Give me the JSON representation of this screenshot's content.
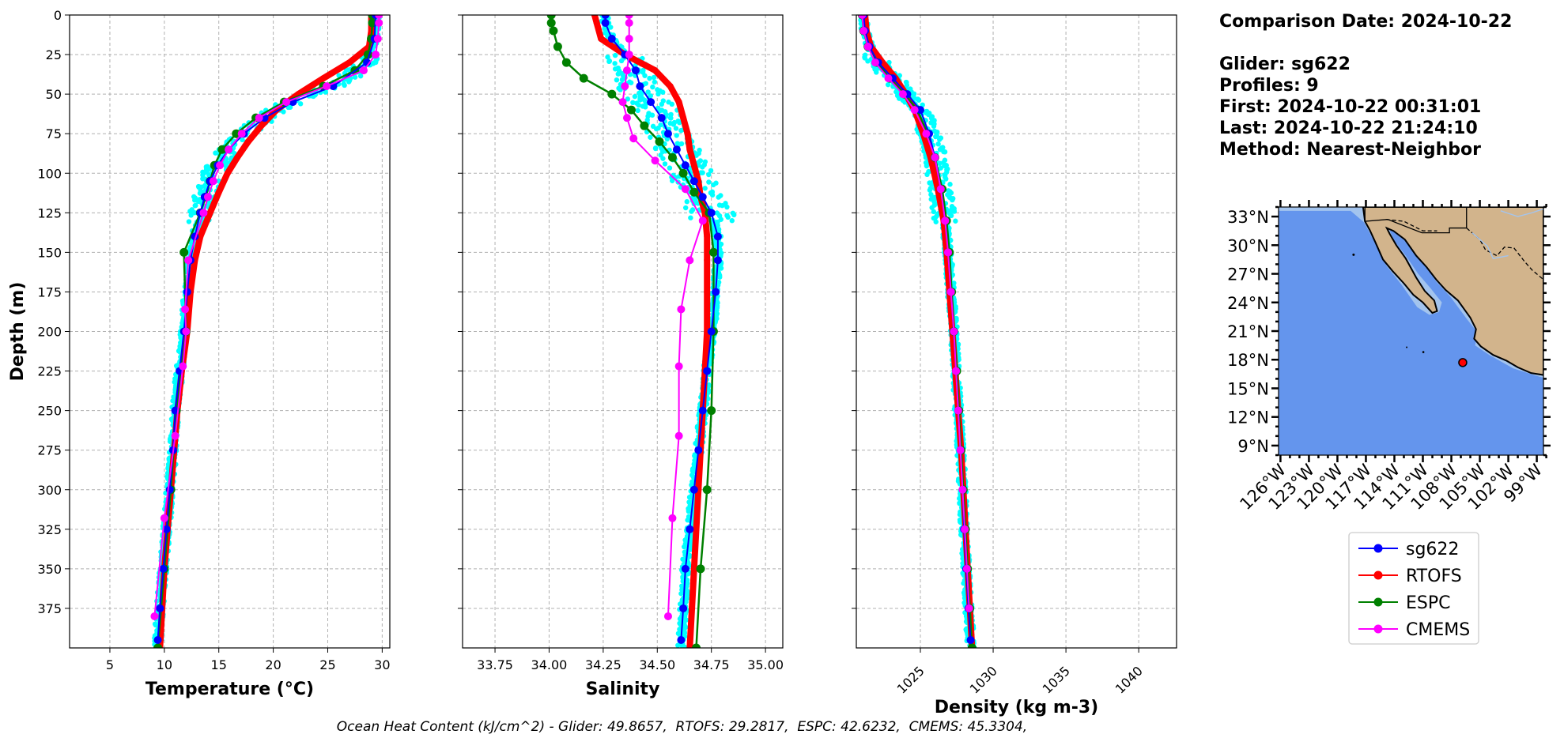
{
  "colors": {
    "glider": "#0000ff",
    "glider_profiles": "#00ffff",
    "rtofs": "#ff0000",
    "espc": "#008000",
    "cmems": "#ff00ff",
    "ocean": "#6495ed",
    "shelf": "#a3c4ee",
    "land": "#d2b48c",
    "grid": "#b0b0b0"
  },
  "info": {
    "date": "Comparison Date: 2024-10-22",
    "glider": "Glider: sg622",
    "profiles": "Profiles: 9",
    "first": "First: 2024-10-22 00:31:01",
    "last": "Last: 2024-10-22 21:24:10",
    "method": "Method: Nearest-Neighbor"
  },
  "footer": "Ocean Heat Content (kJ/cm^2) - Glider: 49.8657,  RTOFS: 29.2817,  ESPC: 42.6232,  CMEMS: 45.3304,",
  "legend": [
    "sg622",
    "RTOFS",
    "ESPC",
    "CMEMS"
  ],
  "chart_data": [
    {
      "type": "line",
      "xlabel": "Temperature (°C)",
      "ylabel": "Depth (m)",
      "xlim": [
        1.3,
        30.7
      ],
      "ylim": [
        400,
        0
      ],
      "xticks": [
        "5",
        "10",
        "15",
        "20",
        "25",
        "30"
      ],
      "xtick_values": [
        5,
        10,
        15,
        20,
        25,
        30
      ],
      "yticks": [
        "0",
        "25",
        "50",
        "75",
        "100",
        "125",
        "150",
        "175",
        "200",
        "225",
        "250",
        "275",
        "300",
        "325",
        "350",
        "375"
      ],
      "ytick_values": [
        0,
        25,
        50,
        75,
        100,
        125,
        150,
        175,
        200,
        225,
        250,
        275,
        300,
        325,
        350,
        375
      ],
      "grid": true,
      "series": [
        {
          "name": "sg622",
          "depth": [
            0,
            15,
            30,
            45,
            55,
            65,
            75,
            85,
            95,
            105,
            115,
            125,
            140,
            155,
            175,
            200,
            225,
            250,
            275,
            300,
            325,
            350,
            375,
            395
          ],
          "values": [
            29.4,
            29.3,
            28.6,
            25.5,
            21.8,
            19.2,
            17.3,
            15.9,
            14.9,
            14.2,
            13.7,
            13.3,
            12.8,
            12.4,
            12.1,
            11.8,
            11.4,
            11.0,
            10.8,
            10.5,
            10.2,
            9.9,
            9.6,
            9.4
          ]
        },
        {
          "name": "RTOFS",
          "depth": [
            0,
            10,
            20,
            30,
            40,
            50,
            60,
            70,
            80,
            90,
            100,
            112,
            125,
            140,
            155,
            175,
            200,
            225,
            250,
            275,
            300,
            325,
            350,
            375,
            400
          ],
          "values": [
            29.0,
            29.0,
            28.8,
            27.0,
            24.6,
            22.3,
            20.3,
            18.9,
            17.7,
            16.7,
            15.8,
            15.0,
            14.2,
            13.3,
            12.8,
            12.4,
            12.1,
            11.6,
            11.2,
            10.9,
            10.6,
            10.3,
            10.0,
            9.8,
            9.6
          ]
        },
        {
          "name": "ESPC",
          "depth": [
            0,
            5,
            15,
            25,
            35,
            45,
            55,
            65,
            75,
            85,
            95,
            105,
            115,
            125,
            150,
            200,
            250,
            300,
            350,
            400
          ],
          "values": [
            29.1,
            29.1,
            29.0,
            28.7,
            27.5,
            24.6,
            21.0,
            18.4,
            16.6,
            15.3,
            14.6,
            14.2,
            13.8,
            13.3,
            11.8,
            12.0,
            11.1,
            10.6,
            10.0,
            9.4
          ]
        },
        {
          "name": "CMEMS",
          "depth": [
            0,
            5,
            15,
            25,
            35,
            45,
            55,
            65,
            75,
            85,
            95,
            105,
            115,
            125,
            155,
            186,
            200,
            222,
            266,
            318,
            380
          ],
          "values": [
            29.7,
            29.7,
            29.6,
            29.4,
            28.3,
            24.9,
            21.2,
            18.7,
            17.1,
            15.9,
            15.1,
            14.5,
            14.0,
            13.6,
            12.2,
            11.9,
            12.0,
            11.7,
            11.0,
            10.0,
            9.1
          ]
        }
      ]
    },
    {
      "type": "line",
      "xlabel": "Salinity",
      "ylim": [
        400,
        0
      ],
      "xlim": [
        33.6,
        35.08
      ],
      "xticks": [
        "33.75",
        "34.00",
        "34.25",
        "34.50",
        "34.75",
        "35.00"
      ],
      "xtick_values": [
        33.75,
        34.0,
        34.25,
        34.5,
        34.75,
        35.0
      ],
      "grid": true,
      "series": [
        {
          "name": "sg622",
          "depth": [
            0,
            5,
            15,
            25,
            35,
            45,
            55,
            65,
            75,
            85,
            95,
            105,
            115,
            125,
            140,
            155,
            175,
            200,
            225,
            250,
            275,
            300,
            325,
            350,
            375,
            395
          ],
          "values": [
            34.26,
            34.26,
            34.29,
            34.35,
            34.4,
            34.42,
            34.47,
            34.52,
            34.55,
            34.59,
            34.63,
            34.67,
            34.71,
            34.75,
            34.78,
            34.78,
            34.77,
            34.75,
            34.73,
            34.71,
            34.69,
            34.67,
            34.65,
            34.63,
            34.62,
            34.61
          ]
        },
        {
          "name": "RTOFS",
          "depth": [
            0,
            5,
            15,
            25,
            35,
            45,
            55,
            65,
            75,
            85,
            95,
            105,
            115,
            125,
            140,
            155,
            175,
            200,
            225,
            250,
            275,
            300,
            325,
            350,
            375,
            400
          ],
          "values": [
            34.21,
            34.22,
            34.24,
            34.35,
            34.49,
            34.56,
            34.6,
            34.62,
            34.64,
            34.65,
            34.67,
            34.69,
            34.7,
            34.72,
            34.73,
            34.73,
            34.73,
            34.73,
            34.72,
            34.71,
            34.7,
            34.69,
            34.68,
            34.67,
            34.66,
            34.65
          ]
        },
        {
          "name": "ESPC",
          "depth": [
            0,
            5,
            10,
            20,
            30,
            40,
            50,
            60,
            70,
            80,
            90,
            100,
            112,
            125,
            150,
            200,
            250,
            300,
            350,
            400
          ],
          "values": [
            34.01,
            34.01,
            34.02,
            34.04,
            34.08,
            34.16,
            34.29,
            34.38,
            34.44,
            34.51,
            34.57,
            34.62,
            34.67,
            34.74,
            34.76,
            34.76,
            34.75,
            34.73,
            34.7,
            34.68
          ]
        },
        {
          "name": "CMEMS",
          "depth": [
            0,
            5,
            15,
            25,
            35,
            45,
            55,
            65,
            78,
            92,
            110,
            130,
            155,
            186,
            222,
            266,
            318,
            380
          ],
          "values": [
            34.37,
            34.37,
            34.37,
            34.37,
            34.36,
            34.35,
            34.34,
            34.36,
            34.39,
            34.49,
            34.63,
            34.71,
            34.65,
            34.61,
            34.6,
            34.6,
            34.57,
            34.55
          ]
        }
      ]
    },
    {
      "type": "line",
      "xlabel": "Density (kg m-3)",
      "ylim": [
        400,
        0
      ],
      "xlim": [
        1020.6,
        1042.6
      ],
      "xticks": [
        "1025",
        "1030",
        "1035",
        "1040"
      ],
      "xtick_values": [
        1025,
        1030,
        1035,
        1040
      ],
      "grid": true,
      "series": [
        {
          "name": "sg622",
          "depth": [
            0,
            10,
            20,
            30,
            40,
            50,
            60,
            75,
            90,
            110,
            130,
            150,
            175,
            200,
            225,
            250,
            275,
            300,
            325,
            350,
            375,
            395
          ],
          "values": [
            1021.1,
            1021.2,
            1021.5,
            1022.1,
            1023.1,
            1024.1,
            1025.0,
            1025.6,
            1026.0,
            1026.4,
            1026.7,
            1026.9,
            1027.1,
            1027.3,
            1027.45,
            1027.6,
            1027.75,
            1027.9,
            1028.0,
            1028.15,
            1028.3,
            1028.45
          ]
        },
        {
          "name": "RTOFS",
          "depth": [
            0,
            10,
            20,
            30,
            40,
            50,
            60,
            75,
            90,
            110,
            130,
            150,
            175,
            200,
            225,
            250,
            275,
            300,
            325,
            350,
            375,
            400
          ],
          "values": [
            1021.2,
            1021.3,
            1021.6,
            1022.4,
            1023.3,
            1024.0,
            1024.6,
            1025.2,
            1025.7,
            1026.2,
            1026.6,
            1026.8,
            1027.0,
            1027.2,
            1027.4,
            1027.6,
            1027.8,
            1027.95,
            1028.1,
            1028.25,
            1028.4,
            1028.55
          ]
        },
        {
          "name": "ESPC",
          "depth": [
            0,
            10,
            20,
            30,
            40,
            50,
            60,
            75,
            90,
            110,
            130,
            150,
            175,
            200,
            225,
            250,
            275,
            300,
            325,
            350,
            375,
            400
          ],
          "values": [
            1021.0,
            1021.1,
            1021.4,
            1022.0,
            1022.9,
            1023.9,
            1024.8,
            1025.5,
            1026.0,
            1026.5,
            1026.8,
            1027.0,
            1027.15,
            1027.3,
            1027.5,
            1027.65,
            1027.8,
            1027.95,
            1028.1,
            1028.25,
            1028.4,
            1028.55
          ]
        },
        {
          "name": "CMEMS",
          "depth": [
            0,
            10,
            20,
            30,
            40,
            50,
            60,
            75,
            90,
            110,
            130,
            150,
            175,
            200,
            225,
            250,
            275,
            300,
            325,
            350,
            375
          ],
          "values": [
            1021.0,
            1021.1,
            1021.4,
            1021.9,
            1022.8,
            1023.8,
            1024.6,
            1025.4,
            1026.0,
            1026.4,
            1026.7,
            1026.9,
            1027.1,
            1027.3,
            1027.45,
            1027.6,
            1027.75,
            1027.9,
            1028.05,
            1028.2,
            1028.35
          ]
        }
      ]
    }
  ],
  "map": {
    "lat_ticks": [
      "33°N",
      "30°N",
      "27°N",
      "24°N",
      "21°N",
      "18°N",
      "15°N",
      "12°N",
      "9°N"
    ],
    "lat_values": [
      33,
      30,
      27,
      24,
      21,
      18,
      15,
      12,
      9
    ],
    "lon_ticks": [
      "126°W",
      "123°W",
      "120°W",
      "117°W",
      "114°W",
      "111°W",
      "108°W",
      "105°W",
      "102°W",
      "99°W"
    ],
    "lon_values": [
      -126,
      -123,
      -120,
      -117,
      -114,
      -111,
      -108,
      -105,
      -102,
      -99
    ],
    "lon_range": [
      -126.2,
      -98.3
    ],
    "lat_range": [
      8,
      34
    ],
    "glider_position": {
      "lon": -106.8,
      "lat": 17.7
    }
  }
}
